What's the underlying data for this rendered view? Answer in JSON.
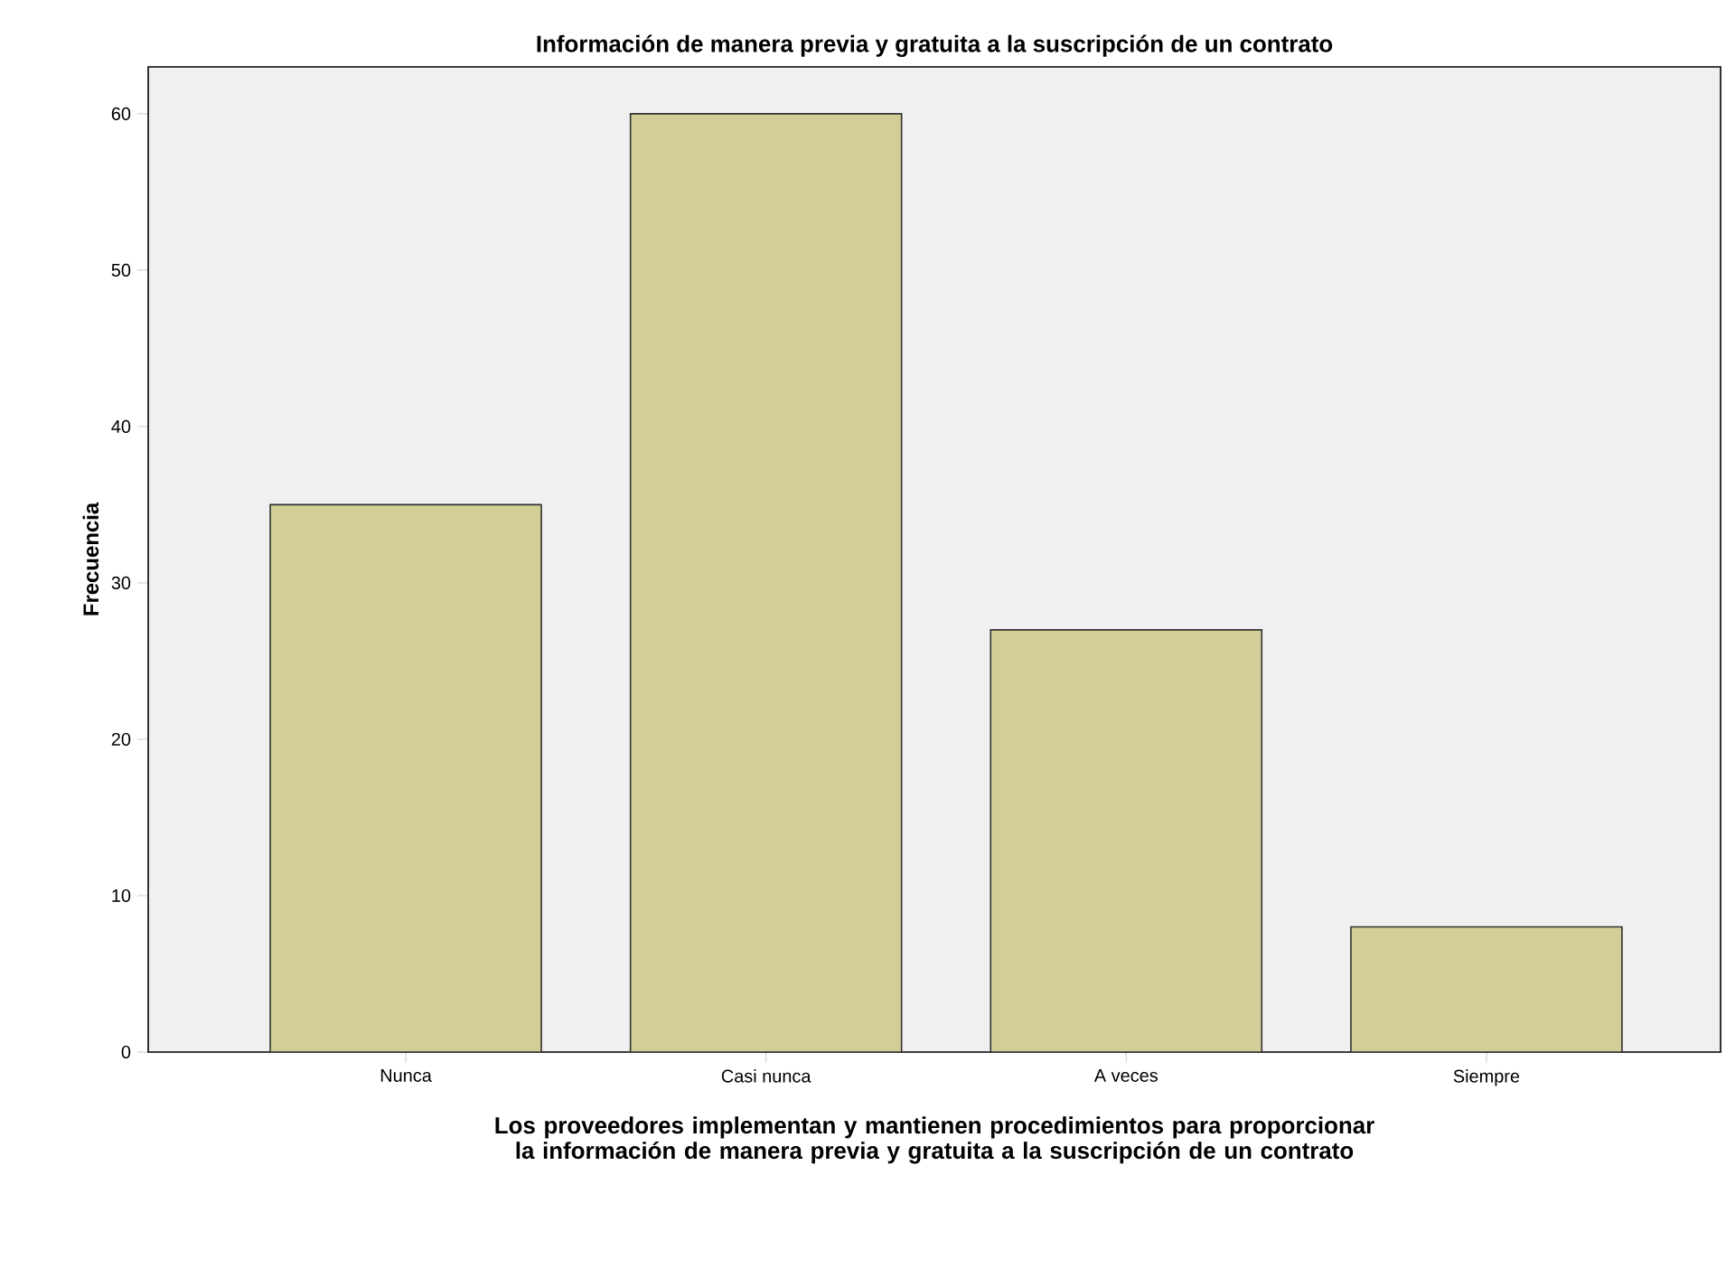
{
  "chart_data": {
    "type": "bar",
    "title": "Información de manera previa y gratuita a la suscripción de un contrato",
    "xlabel": "Los proveedores implementan y mantienen procedimientos para proporcionar la información de manera previa y gratuita a la suscripción de un contrato",
    "ylabel": "Frecuencia",
    "categories": [
      "Nunca",
      "Casi nunca",
      "A veces",
      "Siempre"
    ],
    "values": [
      35,
      60,
      27,
      8
    ],
    "color": "#d3ce97",
    "ylim": [
      0,
      63
    ],
    "yticks": [
      0,
      10,
      20,
      30,
      40,
      50,
      60
    ],
    "grid": false
  }
}
